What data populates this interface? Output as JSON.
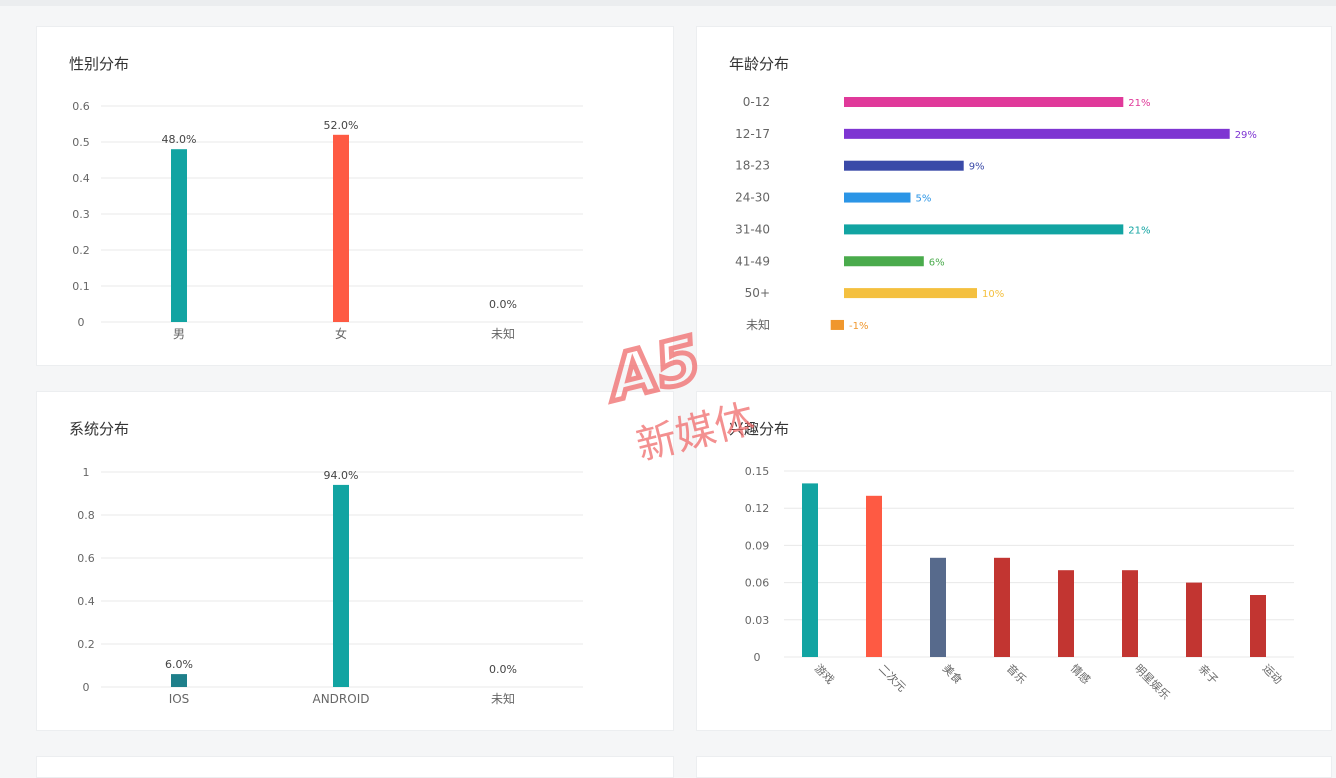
{
  "cards": {
    "gender": {
      "title": "性别分布"
    },
    "age": {
      "title": "年龄分布"
    },
    "system": {
      "title": "系统分布"
    },
    "interest": {
      "title": "兴趣分布"
    }
  },
  "watermark": {
    "logo": "A5",
    "text": "新媒体"
  },
  "colors": {
    "teal": "#12a4a2",
    "orange_red": "#fe5a43",
    "slate": "#576a8c",
    "crimson": "#c23531",
    "grid": "#e8e8e8",
    "axis_text": "#666666"
  },
  "chart_data": [
    {
      "id": "gender",
      "type": "bar",
      "title": "性别分布",
      "categories": [
        "男",
        "女",
        "未知"
      ],
      "values": [
        0.48,
        0.52,
        0.0
      ],
      "labels": [
        "48.0%",
        "52.0%",
        "0.0%"
      ],
      "colors": [
        "#12a4a2",
        "#fe5a43",
        "#12a4a2"
      ],
      "yticks": [
        "0",
        "0.1",
        "0.2",
        "0.3",
        "0.4",
        "0.5",
        "0.6"
      ],
      "ylim": [
        0,
        0.6
      ],
      "grid": true
    },
    {
      "id": "age",
      "type": "bar",
      "orientation": "horizontal",
      "title": "年龄分布",
      "categories": [
        "0-12",
        "12-17",
        "18-23",
        "24-30",
        "31-40",
        "41-49",
        "50+",
        "未知"
      ],
      "values": [
        21,
        29,
        9,
        5,
        21,
        6,
        10,
        -1
      ],
      "labels": [
        "21%",
        "29%",
        "9%",
        "5%",
        "21%",
        "6%",
        "10%",
        "-1%"
      ],
      "colors": [
        "#e0399a",
        "#7e35d2",
        "#3a4aa8",
        "#2b95e6",
        "#12a4a2",
        "#4aab4c",
        "#f4c03f",
        "#f0972d"
      ],
      "grid": false
    },
    {
      "id": "system",
      "type": "bar",
      "title": "系统分布",
      "categories": [
        "IOS",
        "ANDROID",
        "未知"
      ],
      "values": [
        0.06,
        0.94,
        0.0
      ],
      "labels": [
        "6.0%",
        "94.0%",
        "0.0%"
      ],
      "colors": [
        "#1e7f8a",
        "#12a4a2",
        "#12a4a2"
      ],
      "yticks": [
        "0",
        "0.2",
        "0.4",
        "0.6",
        "0.8",
        "1"
      ],
      "ylim": [
        0,
        1
      ],
      "grid": true
    },
    {
      "id": "interest",
      "type": "bar",
      "title": "兴趣分布",
      "categories": [
        "游戏",
        "二次元",
        "美食",
        "音乐",
        "情感",
        "明星娱乐",
        "亲子",
        "运动"
      ],
      "values": [
        0.14,
        0.13,
        0.08,
        0.08,
        0.07,
        0.07,
        0.06,
        0.05
      ],
      "colors": [
        "#12a4a2",
        "#fe5a43",
        "#576a8c",
        "#c23531",
        "#c23531",
        "#c23531",
        "#c23531",
        "#c23531"
      ],
      "yticks": [
        "0",
        "0.03",
        "0.06",
        "0.09",
        "0.12",
        "0.15"
      ],
      "ylim": [
        0,
        0.15
      ],
      "grid": true
    }
  ]
}
